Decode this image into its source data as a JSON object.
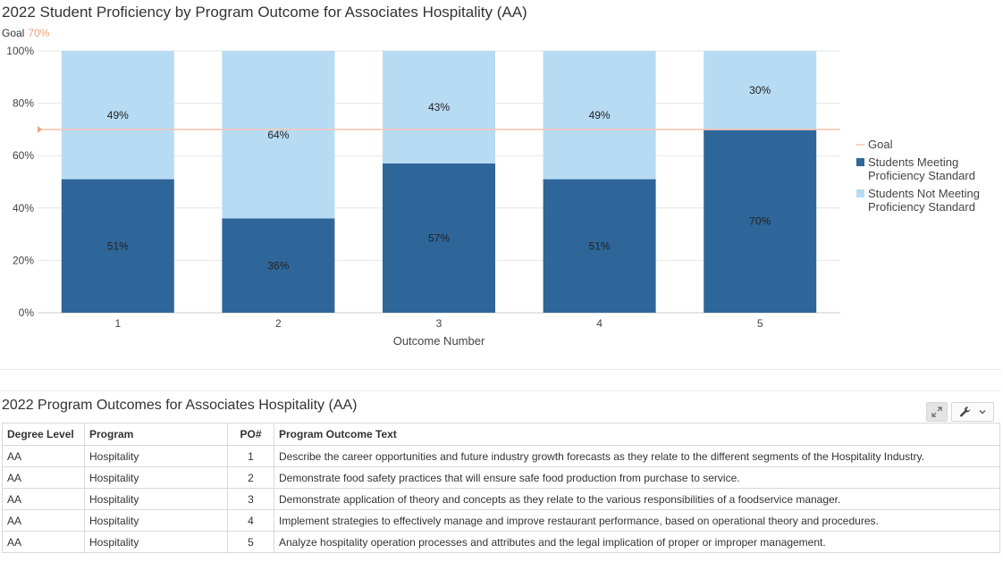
{
  "chart_data": {
    "type": "bar",
    "stacked": true,
    "title": "2022 Student Proficiency by Program Outcome for Associates Hospitality (AA)",
    "goal_label": "Goal",
    "goal_value_label": "70%",
    "goal": 70,
    "xlabel": "Outcome Number",
    "ylabel": "",
    "ylim": [
      0,
      100
    ],
    "yticks": [
      "0%",
      "20%",
      "40%",
      "60%",
      "80%",
      "100%"
    ],
    "ytick_values": [
      0,
      20,
      40,
      60,
      80,
      100
    ],
    "categories": [
      "1",
      "2",
      "3",
      "4",
      "5"
    ],
    "series": [
      {
        "name": "Students Meeting Proficiency Standard",
        "color": "#2e6699",
        "values": [
          51,
          36,
          57,
          51,
          70
        ],
        "labels": [
          "51%",
          "36%",
          "57%",
          "51%",
          "70%"
        ]
      },
      {
        "name": "Students Not Meeting Proficiency Standard",
        "color": "#b8dbf4",
        "values": [
          49,
          64,
          43,
          49,
          30
        ],
        "labels": [
          "49%",
          "64%",
          "43%",
          "49%",
          "30%"
        ]
      }
    ],
    "goal_color": "#f4c7b6",
    "grid": true,
    "legend_position": "right",
    "legend": [
      {
        "type": "line",
        "label_lines": [
          "Goal"
        ],
        "color": "#f4c7b6"
      },
      {
        "type": "box",
        "label_lines": [
          "Students Meeting",
          "Proficiency Standard"
        ],
        "color": "#2e6699"
      },
      {
        "type": "box",
        "label_lines": [
          "Students Not Meeting",
          "Proficiency Standard"
        ],
        "color": "#b8dbf4"
      }
    ]
  },
  "table_section": {
    "title": "2022 Program Outcomes for Associates Hospitality (AA)",
    "columns": [
      "Degree Level",
      "Program",
      "PO#",
      "Program Outcome Text"
    ],
    "rows": [
      [
        "AA",
        "Hospitality",
        "1",
        "Describe the career opportunities and future industry growth forecasts as they relate to the different segments of the Hospitality Industry."
      ],
      [
        "AA",
        "Hospitality",
        "2",
        "Demonstrate food safety practices that will ensure safe food production from purchase to service."
      ],
      [
        "AA",
        "Hospitality",
        "3",
        "Demonstrate application of theory and concepts as they relate to the various responsibilities of a foodservice manager."
      ],
      [
        "AA",
        "Hospitality",
        "4",
        "Implement strategies to effectively manage and improve restaurant performance, based on operational theory and procedures."
      ],
      [
        "AA",
        "Hospitality",
        "5",
        "Analyze hospitality operation processes and attributes and the legal implication of proper or improper management."
      ]
    ]
  },
  "toolbar": {
    "expand_icon": "expand-icon",
    "settings_icon": "wrench-icon",
    "dropdown_icon": "chevron-down-icon"
  }
}
